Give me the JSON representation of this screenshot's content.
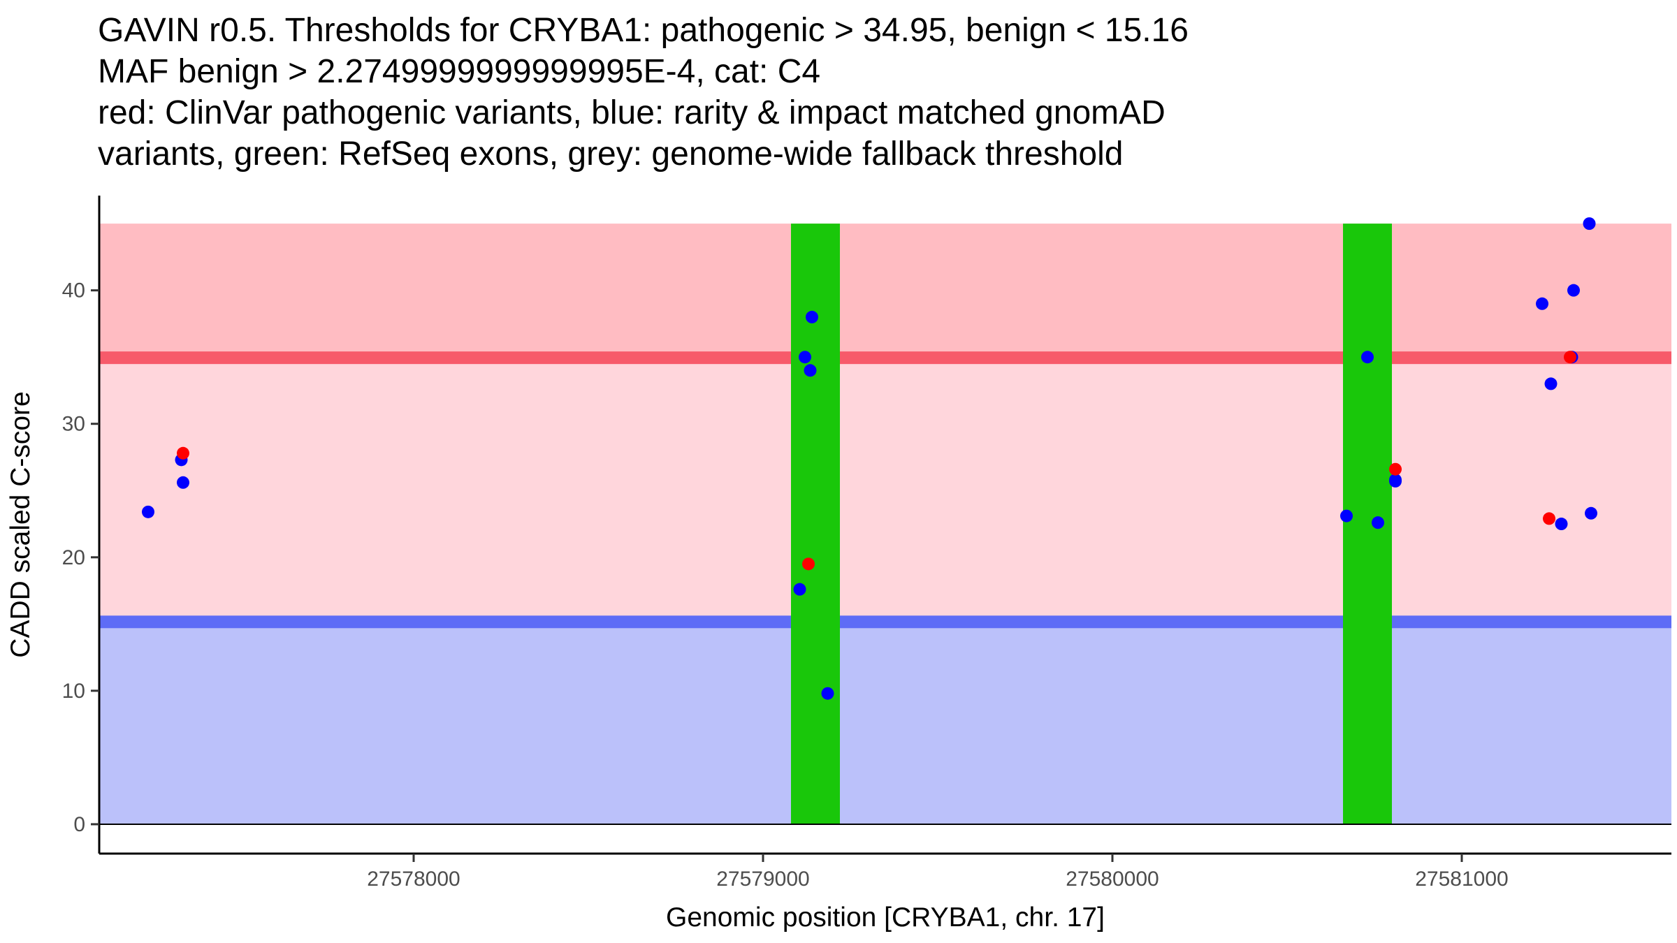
{
  "title_lines": [
    "GAVIN r0.5. Thresholds for CRYBA1: pathogenic > 34.95, benign < 15.16",
    "MAF benign > 2.2749999999999995E-4, cat: C4",
    "red: ClinVar pathogenic variants, blue: rarity & impact matched gnomAD",
    "variants, green: RefSeq exons, grey: genome-wide fallback threshold"
  ],
  "colors": {
    "pathogenic_region": "#ffbcc2",
    "mid_region": "#ffd6dc",
    "benign_region": "#bbc1fa",
    "pathogenic_line": "#f75a6a",
    "benign_line": "#5e6cf6",
    "exon": "#19c70a",
    "clinvar_point": "#ff0000",
    "gnomad_point": "#0000ff"
  },
  "chart_data": {
    "type": "scatter",
    "xlabel": "Genomic position [CRYBA1, chr. 17]",
    "ylabel": "CADD scaled C-score",
    "xlim": [
      27577100,
      27581600
    ],
    "ylim": [
      -2.2,
      47.1
    ],
    "x_ticks": [
      27578000,
      27579000,
      27580000,
      27581000
    ],
    "y_ticks": [
      0,
      10,
      20,
      30,
      40
    ],
    "thresholds": {
      "pathogenic": 34.95,
      "benign": 15.16
    },
    "regions": [
      {
        "name": "pathogenic",
        "y": [
          35.3,
          45
        ]
      },
      {
        "name": "between",
        "y": [
          15.16,
          34.95
        ]
      },
      {
        "name": "benign",
        "y": [
          0,
          14.7
        ]
      }
    ],
    "exons": [
      {
        "x": [
          27579080,
          27579220
        ]
      },
      {
        "x": [
          27580660,
          27580800
        ]
      }
    ],
    "series": [
      {
        "name": "ClinVar pathogenic variants",
        "color": "#ff0000",
        "points": [
          [
            27577340,
            27.8
          ],
          [
            27579130,
            19.5
          ],
          [
            27580810,
            26.6
          ],
          [
            27581250,
            22.9
          ],
          [
            27581310,
            35.0
          ]
        ]
      },
      {
        "name": "rarity & impact matched gnomAD variants",
        "color": "#0000ff",
        "points": [
          [
            27577240,
            23.4
          ],
          [
            27577335,
            27.3
          ],
          [
            27577340,
            25.6
          ],
          [
            27579105,
            17.6
          ],
          [
            27579120,
            35.0
          ],
          [
            27579135,
            34.0
          ],
          [
            27579140,
            38.0
          ],
          [
            27579185,
            9.8
          ],
          [
            27580670,
            23.1
          ],
          [
            27580730,
            35.0
          ],
          [
            27580760,
            22.6
          ],
          [
            27580810,
            25.8
          ],
          [
            27580810,
            25.7
          ],
          [
            27581230,
            39.0
          ],
          [
            27581255,
            33.0
          ],
          [
            27581285,
            22.5
          ],
          [
            27581315,
            35.0
          ],
          [
            27581320,
            40.0
          ],
          [
            27581365,
            45.0
          ],
          [
            27581370,
            23.3
          ]
        ]
      }
    ]
  }
}
